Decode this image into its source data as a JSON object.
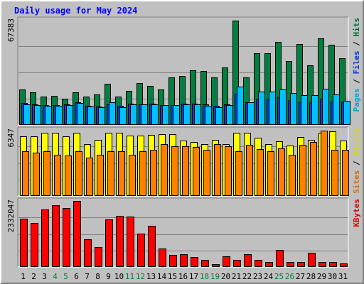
{
  "chart_data": {
    "type": "bar",
    "title": "Daily usage for May 2024",
    "days": [
      "1",
      "2",
      "3",
      "4",
      "5",
      "6",
      "7",
      "8",
      "9",
      "10",
      "11",
      "12",
      "13",
      "14",
      "15",
      "16",
      "17",
      "18",
      "19",
      "20",
      "21",
      "22",
      "23",
      "24",
      "25",
      "26",
      "27",
      "28",
      "29",
      "30",
      "31"
    ],
    "weekend_days": [
      "4",
      "5",
      "11",
      "12",
      "18",
      "19",
      "25",
      "26"
    ],
    "panels": [
      {
        "id": "hits",
        "max_label": "67383",
        "ymax": 67383,
        "legend": [
          "Pages",
          "Files",
          "Hits"
        ],
        "legend_colors": [
          "#00c0ff",
          "#0040ff",
          "#008040"
        ],
        "series": [
          {
            "name": "Hits",
            "color": "#008040",
            "values": [
              22600,
              20900,
              18100,
              18500,
              16800,
              20900,
              18100,
              19400,
              26400,
              18100,
              22000,
              26900,
              25100,
              22900,
              30400,
              31200,
              35000,
              34400,
              30400,
              37100,
              67000,
              30400,
              45900,
              45900,
              53300,
              41100,
              52100,
              38100,
              55500,
              51400,
              42700
            ]
          },
          {
            "name": "Files",
            "color": "#0040ff",
            "values": [
              13900,
              13400,
              12900,
              12900,
              13100,
              14500,
              12500,
              12000,
              13400,
              12100,
              13600,
              13400,
              13600,
              12600,
              12900,
              13600,
              13600,
              13200,
              12300,
              13400,
              20100,
              14600,
              16600,
              16600,
              17600,
              15800,
              14500,
              14500,
              16900,
              14800,
              14600
            ]
          },
          {
            "name": "Pages",
            "color": "#00c0ff",
            "values": [
              13400,
              12900,
              12400,
              12400,
              12600,
              13900,
              12000,
              11500,
              14500,
              11500,
              13100,
              13400,
              13100,
              12600,
              12900,
              13100,
              13100,
              12400,
              11500,
              12900,
              24600,
              14500,
              21300,
              21300,
              22900,
              20700,
              18900,
              18900,
              23400,
              19600,
              15700
            ]
          }
        ]
      },
      {
        "id": "visits",
        "max_label": "6347",
        "ymax": 6347,
        "legend": [
          "Sites",
          "Visits"
        ],
        "legend_colors": [
          "#ff8000",
          "#ffff00"
        ],
        "series": [
          {
            "name": "Visits",
            "color": "#ffff00",
            "values": [
              5710,
              5710,
              6070,
              6070,
              5710,
              6070,
              5010,
              5370,
              6070,
              6070,
              5790,
              5790,
              5870,
              5950,
              5950,
              5310,
              5190,
              5010,
              5370,
              5010,
              6070,
              6070,
              5610,
              5010,
              5270,
              4830,
              5690,
              5370,
              6070,
              6200,
              5350
            ]
          },
          {
            "name": "Sites",
            "color": "#ff8000",
            "values": [
              4270,
              4180,
              4330,
              3970,
              3880,
              4270,
              3710,
              3970,
              4270,
              4270,
              3970,
              4330,
              4450,
              4980,
              4800,
              4800,
              4680,
              4450,
              4980,
              4800,
              4270,
              4890,
              4510,
              4270,
              4560,
              3970,
              4890,
              5160,
              6280,
              4450,
              4450
            ]
          }
        ]
      },
      {
        "id": "kbytes",
        "max_label": "2332047",
        "ymax": 2332047,
        "legend": [
          "KBytes"
        ],
        "legend_colors": [
          "#ff0000"
        ],
        "series": [
          {
            "name": "KBytes",
            "color": "#ff0000",
            "values": [
              1710000,
              1550000,
              2030000,
              2190000,
              2090000,
              2330000,
              970000,
              700000,
              1690000,
              1810000,
              1790000,
              1190000,
              1460000,
              650000,
              430000,
              460000,
              350000,
              250000,
              100000,
              370000,
              250000,
              460000,
              250000,
              180000,
              600000,
              180000,
              180000,
              500000,
              180000,
              170000,
              130000
            ]
          }
        ]
      }
    ]
  }
}
